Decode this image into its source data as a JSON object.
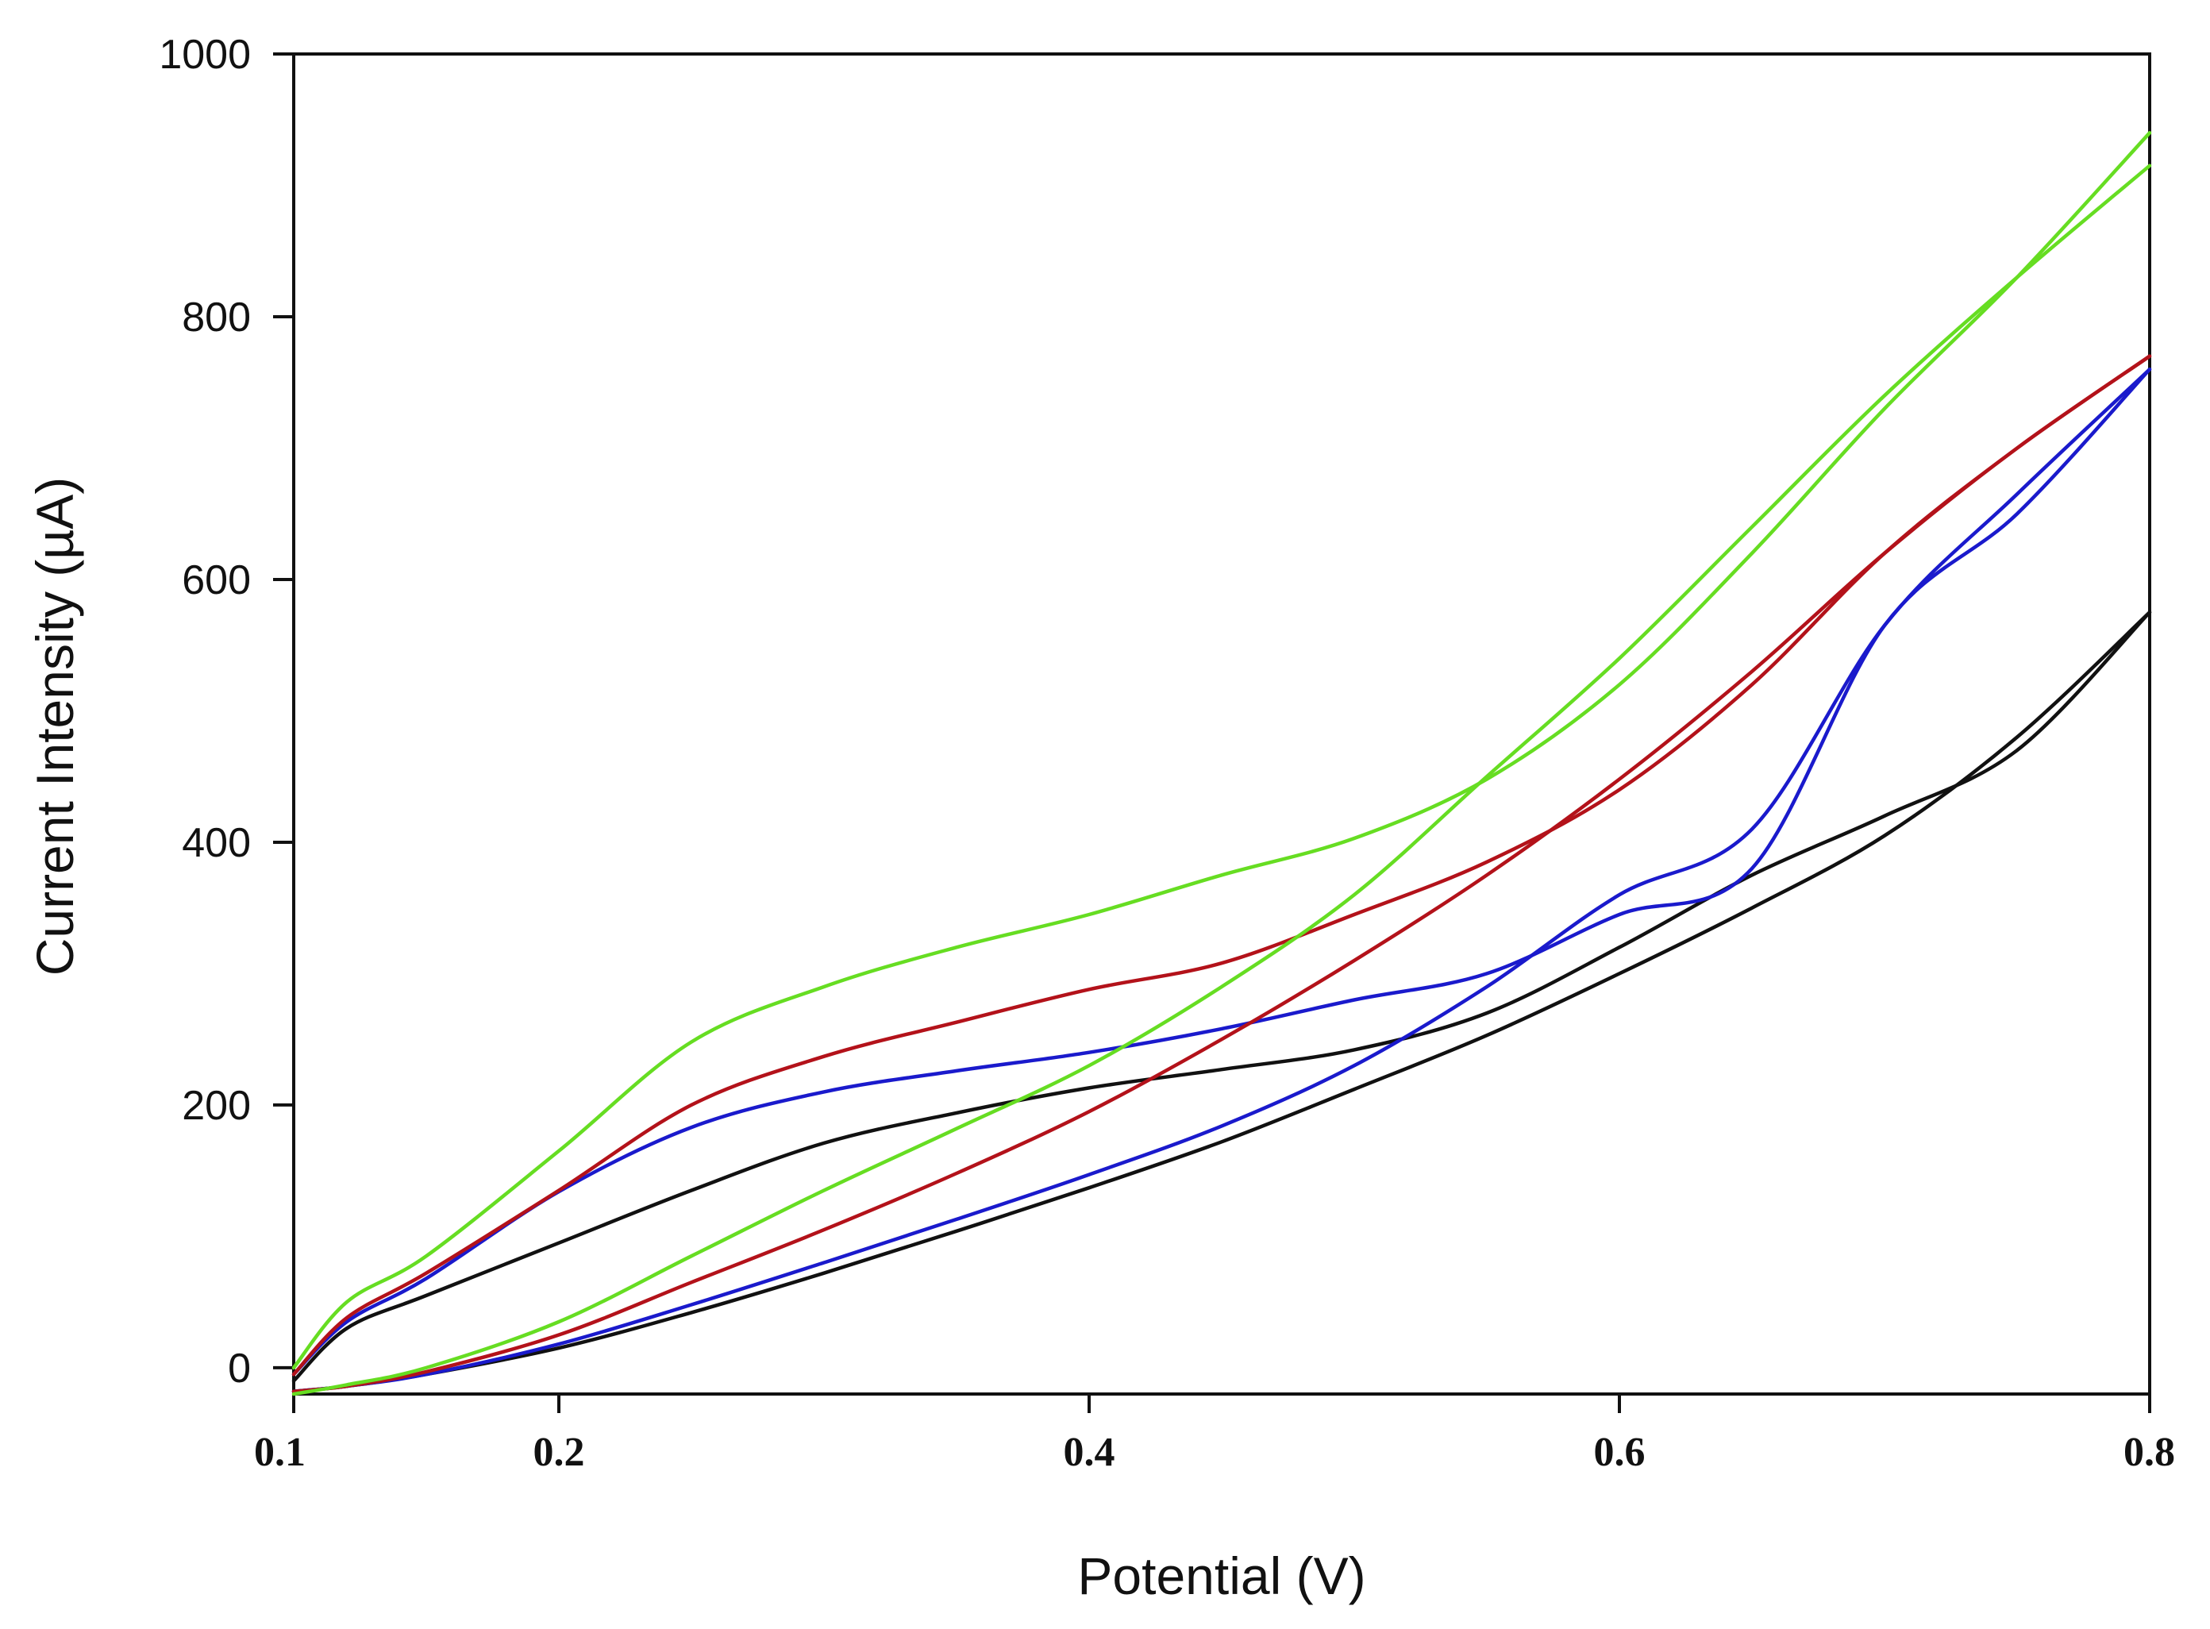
{
  "chart_data": {
    "type": "line",
    "title": "",
    "xlabel": "Potential (V)",
    "ylabel": "Current Intensity (µA)",
    "xlim": [
      0.1,
      0.8
    ],
    "ylim": [
      -20,
      1000
    ],
    "grid": false,
    "legend": "none",
    "x_tick_labels": [
      "0.1",
      "0.2",
      "0.4",
      "0.6",
      "0.8"
    ],
    "y_tick_labels": [
      "0",
      "200",
      "400",
      "600",
      "800",
      "1000"
    ],
    "series": [
      {
        "name": "black",
        "color": "#111111",
        "anodic": {
          "x": [
            0.1,
            0.12,
            0.15,
            0.2,
            0.25,
            0.3,
            0.35,
            0.4,
            0.45,
            0.5,
            0.55,
            0.6,
            0.65,
            0.7,
            0.75,
            0.8
          ],
          "y": [
            -18,
            -14,
            -5,
            15,
            42,
            72,
            104,
            137,
            172,
            212,
            253,
            300,
            350,
            405,
            480,
            575
          ]
        },
        "cathodic": {
          "x": [
            0.8,
            0.75,
            0.7,
            0.65,
            0.6,
            0.55,
            0.5,
            0.45,
            0.4,
            0.35,
            0.3,
            0.25,
            0.2,
            0.15,
            0.12,
            0.1
          ],
          "y": [
            575,
            470,
            420,
            375,
            320,
            270,
            242,
            227,
            213,
            194,
            171,
            135,
            95,
            55,
            30,
            -10
          ]
        }
      },
      {
        "name": "blue",
        "color": "#1a1acc",
        "anodic": {
          "x": [
            0.1,
            0.12,
            0.15,
            0.2,
            0.25,
            0.3,
            0.35,
            0.4,
            0.45,
            0.5,
            0.55,
            0.6,
            0.65,
            0.7,
            0.75,
            0.8
          ],
          "y": [
            -18,
            -14,
            -5,
            18,
            48,
            80,
            113,
            147,
            184,
            230,
            290,
            360,
            410,
            565,
            665,
            760
          ]
        },
        "cathodic": {
          "x": [
            0.8,
            0.75,
            0.7,
            0.65,
            0.6,
            0.55,
            0.5,
            0.45,
            0.4,
            0.35,
            0.3,
            0.25,
            0.2,
            0.15,
            0.12,
            0.1
          ],
          "y": [
            760,
            650,
            565,
            380,
            345,
            300,
            280,
            258,
            240,
            226,
            210,
            183,
            134,
            68,
            35,
            -5
          ]
        }
      },
      {
        "name": "red",
        "color": "#b3121a",
        "anodic": {
          "x": [
            0.1,
            0.12,
            0.15,
            0.2,
            0.25,
            0.3,
            0.35,
            0.4,
            0.45,
            0.5,
            0.55,
            0.6,
            0.65,
            0.7,
            0.75,
            0.8
          ],
          "y": [
            -18,
            -14,
            -3,
            25,
            65,
            105,
            148,
            195,
            250,
            310,
            375,
            448,
            530,
            620,
            700,
            770
          ]
        },
        "cathodic": {
          "x": [
            0.8,
            0.75,
            0.7,
            0.65,
            0.6,
            0.55,
            0.5,
            0.45,
            0.4,
            0.35,
            0.3,
            0.25,
            0.2,
            0.15,
            0.12,
            0.1
          ],
          "y": [
            770,
            700,
            620,
            520,
            440,
            385,
            345,
            308,
            288,
            263,
            237,
            200,
            135,
            72,
            38,
            -5
          ]
        }
      },
      {
        "name": "green",
        "color": "#66dd22",
        "anodic": {
          "x": [
            0.1,
            0.12,
            0.15,
            0.2,
            0.25,
            0.3,
            0.35,
            0.4,
            0.45,
            0.5,
            0.55,
            0.6,
            0.65,
            0.7,
            0.75,
            0.8
          ],
          "y": [
            -20,
            -13,
            0,
            35,
            85,
            135,
            182,
            230,
            290,
            360,
            450,
            540,
            640,
            740,
            830,
            915
          ]
        },
        "cathodic": {
          "x": [
            0.8,
            0.75,
            0.7,
            0.65,
            0.6,
            0.55,
            0.5,
            0.45,
            0.4,
            0.35,
            0.3,
            0.25,
            0.2,
            0.15,
            0.12,
            0.1
          ],
          "y": [
            940,
            830,
            730,
            620,
            520,
            448,
            403,
            375,
            345,
            320,
            290,
            248,
            165,
            85,
            50,
            0
          ]
        }
      }
    ]
  }
}
